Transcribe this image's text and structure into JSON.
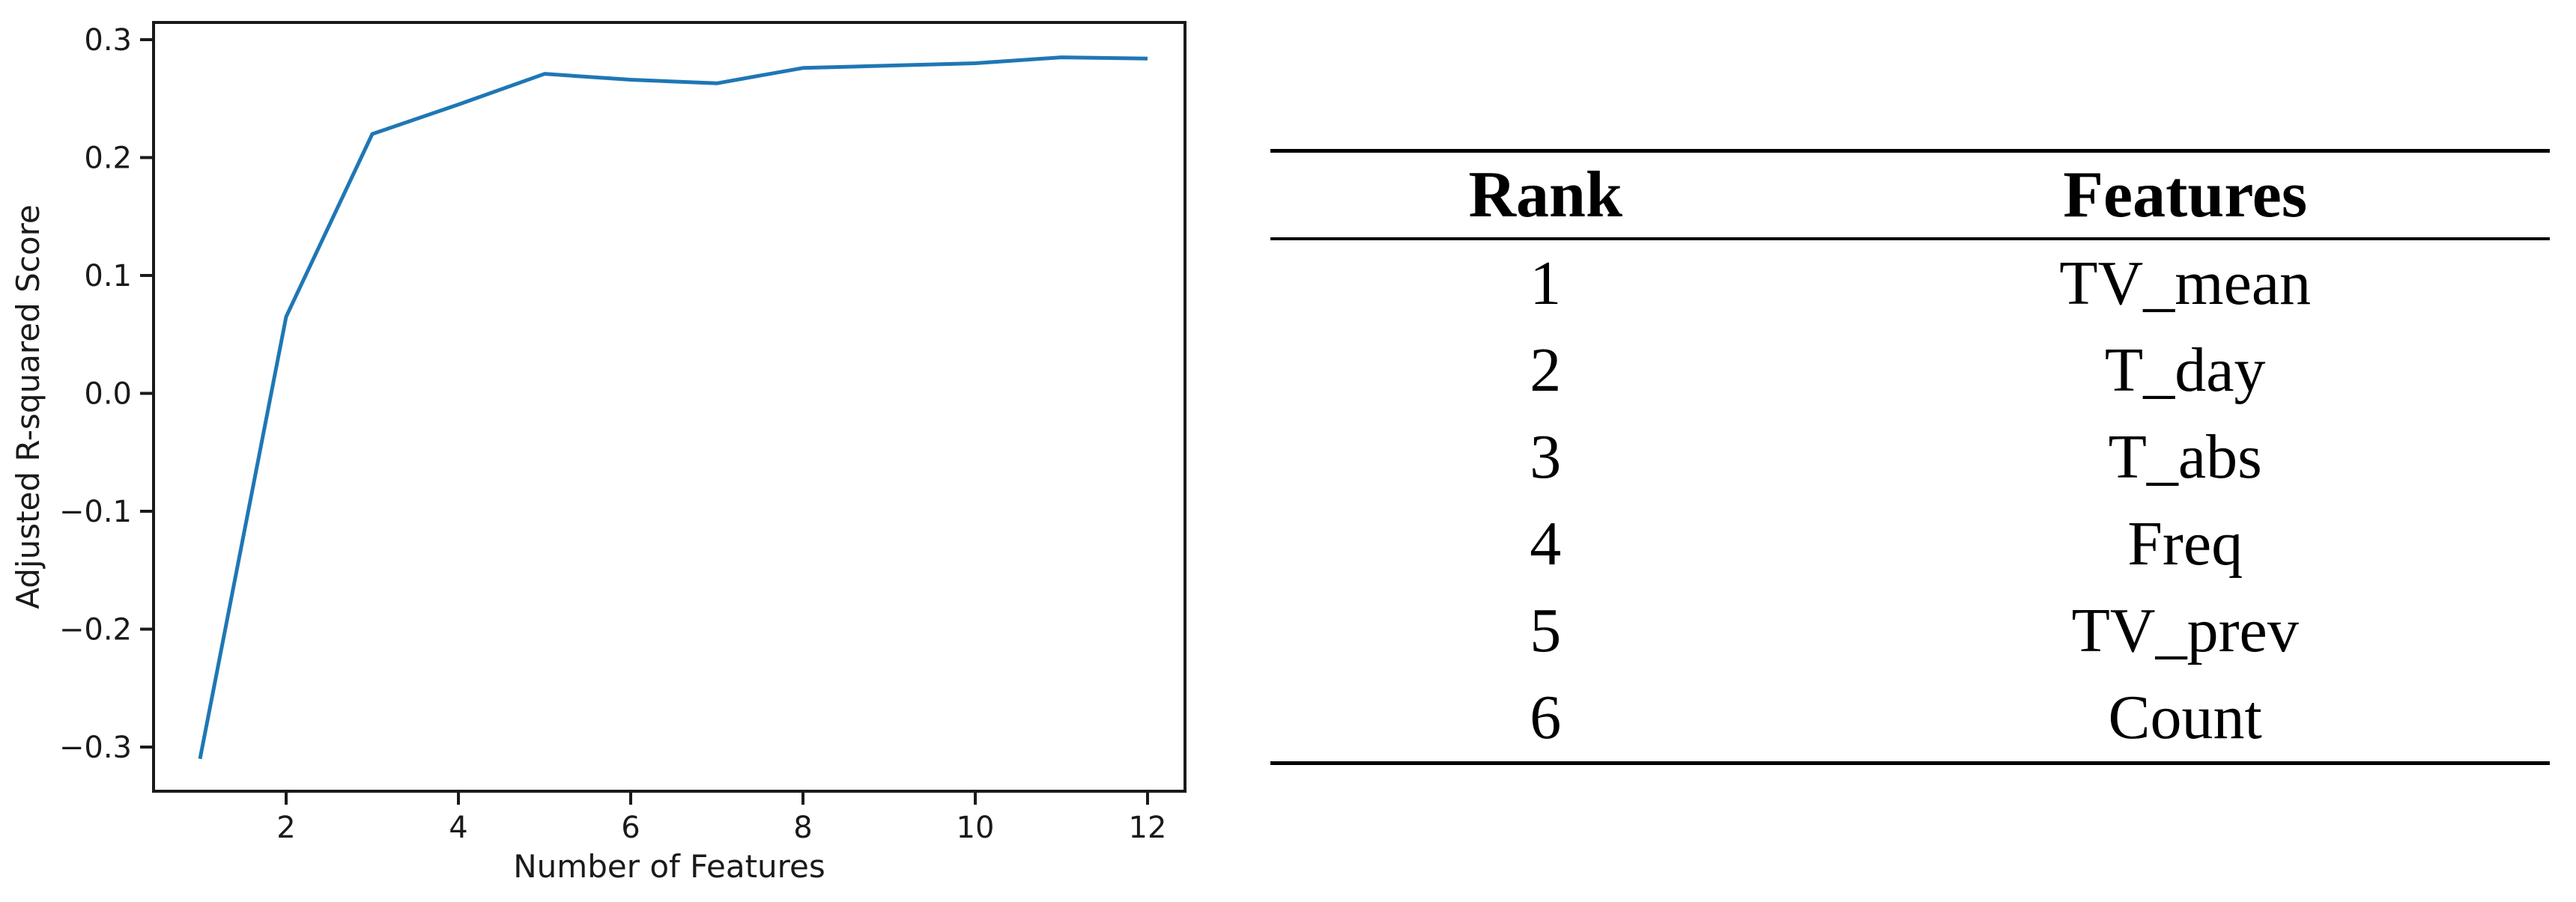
{
  "chart_data": {
    "type": "line",
    "title": "",
    "xlabel": "Number of Features",
    "ylabel": "Adjusted R-squared Score",
    "x": [
      1,
      2,
      3,
      4,
      5,
      6,
      7,
      8,
      9,
      10,
      11,
      12
    ],
    "y": [
      -0.31,
      0.065,
      0.22,
      0.245,
      0.271,
      0.266,
      0.263,
      0.276,
      0.278,
      0.28,
      0.285,
      0.284
    ],
    "x_tick_values": [
      2,
      4,
      6,
      8,
      10,
      12
    ],
    "x_tick_labels": [
      "2",
      "4",
      "6",
      "8",
      "10",
      "12"
    ],
    "y_tick_values": [
      0.3,
      0.2,
      0.1,
      0.0,
      -0.1,
      -0.2,
      -0.3
    ],
    "y_tick_labels": [
      "0.3",
      "0.2",
      "0.1",
      "0.0",
      "−0.1",
      "−0.2",
      "−0.3"
    ],
    "xlim": [
      0.45,
      12.43
    ],
    "ylim": [
      -0.3375,
      0.3146
    ],
    "grid": false,
    "legend": "none",
    "line_color": "#1f77b4",
    "axis_color": "#1a1a1a"
  },
  "table": {
    "headers": [
      "Rank",
      "Features"
    ],
    "rows": [
      [
        "1",
        "TV_mean"
      ],
      [
        "2",
        "T_day"
      ],
      [
        "3",
        "T_abs"
      ],
      [
        "4",
        "Freq"
      ],
      [
        "5",
        "TV_prev"
      ],
      [
        "6",
        "Count"
      ]
    ]
  }
}
